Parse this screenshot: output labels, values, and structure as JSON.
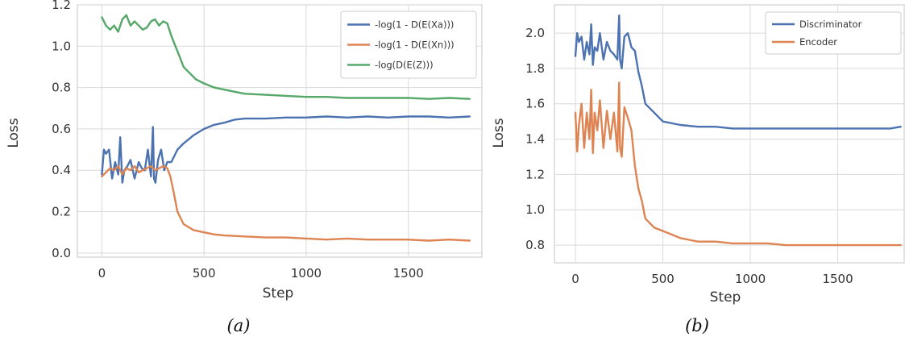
{
  "chart_data": [
    {
      "type": "line",
      "panel_label": "(a)",
      "xlabel": "Step",
      "ylabel": "Loss",
      "xlim": [
        -120,
        1860
      ],
      "ylim": [
        -0.02,
        1.2
      ],
      "xticks": [
        "0",
        "500",
        "1000",
        "1500"
      ],
      "xtick_values": [
        0,
        500,
        1000,
        1500
      ],
      "yticks": [
        "0.0",
        "0.2",
        "0.4",
        "0.6",
        "0.8",
        "1.0",
        "1.2"
      ],
      "ytick_values": [
        0.0,
        0.2,
        0.4,
        0.6,
        0.8,
        1.0,
        1.2
      ],
      "grid": true,
      "legend": "top-right",
      "series": [
        {
          "name": "-log(1 - D(E(Xa)))",
          "color": "#4c72b0",
          "x": [
            0,
            10,
            20,
            35,
            50,
            65,
            80,
            90,
            100,
            110,
            125,
            140,
            160,
            180,
            195,
            210,
            225,
            240,
            250,
            255,
            262,
            275,
            290,
            305,
            320,
            340,
            370,
            400,
            450,
            500,
            550,
            600,
            650,
            700,
            800,
            900,
            1000,
            1100,
            1200,
            1300,
            1400,
            1500,
            1600,
            1700,
            1800
          ],
          "y": [
            0.38,
            0.5,
            0.48,
            0.5,
            0.36,
            0.44,
            0.38,
            0.56,
            0.34,
            0.4,
            0.42,
            0.45,
            0.36,
            0.44,
            0.41,
            0.4,
            0.5,
            0.37,
            0.61,
            0.36,
            0.34,
            0.45,
            0.5,
            0.4,
            0.44,
            0.44,
            0.5,
            0.53,
            0.57,
            0.6,
            0.62,
            0.63,
            0.645,
            0.65,
            0.65,
            0.655,
            0.655,
            0.66,
            0.655,
            0.66,
            0.655,
            0.66,
            0.66,
            0.655,
            0.66
          ]
        },
        {
          "name": "-log(1 - D(E(Xn)))",
          "color": "#dd8452",
          "x": [
            0,
            20,
            40,
            60,
            80,
            100,
            120,
            140,
            160,
            180,
            200,
            220,
            240,
            260,
            280,
            300,
            320,
            335,
            350,
            370,
            400,
            450,
            500,
            550,
            600,
            700,
            800,
            900,
            1000,
            1100,
            1200,
            1300,
            1400,
            1500,
            1600,
            1700,
            1800
          ],
          "y": [
            0.37,
            0.39,
            0.41,
            0.4,
            0.42,
            0.38,
            0.41,
            0.4,
            0.42,
            0.39,
            0.4,
            0.41,
            0.42,
            0.4,
            0.41,
            0.42,
            0.41,
            0.37,
            0.3,
            0.2,
            0.14,
            0.11,
            0.1,
            0.09,
            0.085,
            0.08,
            0.075,
            0.075,
            0.07,
            0.065,
            0.07,
            0.065,
            0.065,
            0.065,
            0.06,
            0.065,
            0.06
          ]
        },
        {
          "name": "-log(D(E(Z)))",
          "color": "#55a868",
          "x": [
            0,
            20,
            40,
            60,
            80,
            100,
            120,
            140,
            160,
            180,
            200,
            220,
            240,
            260,
            280,
            300,
            320,
            340,
            360,
            380,
            400,
            430,
            460,
            500,
            550,
            600,
            650,
            700,
            800,
            900,
            1000,
            1100,
            1200,
            1300,
            1400,
            1500,
            1600,
            1700,
            1800
          ],
          "y": [
            1.14,
            1.1,
            1.08,
            1.1,
            1.07,
            1.13,
            1.15,
            1.1,
            1.12,
            1.1,
            1.08,
            1.09,
            1.12,
            1.13,
            1.1,
            1.12,
            1.11,
            1.05,
            1.0,
            0.95,
            0.9,
            0.87,
            0.84,
            0.82,
            0.8,
            0.79,
            0.78,
            0.77,
            0.765,
            0.76,
            0.755,
            0.755,
            0.75,
            0.75,
            0.75,
            0.75,
            0.745,
            0.75,
            0.745
          ]
        }
      ]
    },
    {
      "type": "line",
      "panel_label": "(b)",
      "xlabel": "Step",
      "ylabel": "Loss",
      "xlim": [
        -120,
        1880
      ],
      "ylim": [
        0.7,
        2.16
      ],
      "xticks": [
        "0",
        "500",
        "1000",
        "1500"
      ],
      "xtick_values": [
        0,
        500,
        1000,
        1500
      ],
      "yticks": [
        "0.8",
        "1.0",
        "1.2",
        "1.4",
        "1.6",
        "1.8",
        "2.0"
      ],
      "ytick_values": [
        0.8,
        1.0,
        1.2,
        1.4,
        1.6,
        1.8,
        2.0
      ],
      "grid": true,
      "legend": "top-right",
      "series": [
        {
          "name": "Discriminator",
          "color": "#4c72b0",
          "x": [
            0,
            10,
            20,
            35,
            50,
            65,
            80,
            90,
            100,
            110,
            125,
            140,
            160,
            180,
            200,
            220,
            240,
            250,
            255,
            265,
            280,
            300,
            320,
            340,
            360,
            380,
            400,
            450,
            500,
            600,
            700,
            800,
            900,
            1000,
            1100,
            1200,
            1300,
            1400,
            1500,
            1600,
            1700,
            1800,
            1860
          ],
          "y": [
            1.87,
            2.0,
            1.95,
            1.98,
            1.85,
            1.95,
            1.88,
            2.05,
            1.82,
            1.92,
            1.9,
            2.0,
            1.85,
            1.95,
            1.9,
            1.88,
            1.85,
            2.1,
            1.85,
            1.8,
            1.98,
            2.0,
            1.92,
            1.9,
            1.78,
            1.7,
            1.6,
            1.55,
            1.5,
            1.48,
            1.47,
            1.47,
            1.46,
            1.46,
            1.46,
            1.46,
            1.46,
            1.46,
            1.46,
            1.46,
            1.46,
            1.46,
            1.47
          ]
        },
        {
          "name": "Encoder",
          "color": "#dd8452",
          "x": [
            0,
            10,
            20,
            35,
            50,
            65,
            80,
            90,
            100,
            110,
            125,
            140,
            160,
            180,
            200,
            220,
            240,
            250,
            255,
            265,
            280,
            300,
            320,
            340,
            360,
            380,
            400,
            450,
            500,
            550,
            600,
            650,
            700,
            800,
            900,
            1000,
            1100,
            1200,
            1300,
            1350,
            1400,
            1500,
            1600,
            1700,
            1800,
            1860
          ],
          "y": [
            1.55,
            1.33,
            1.48,
            1.6,
            1.35,
            1.55,
            1.4,
            1.68,
            1.32,
            1.55,
            1.45,
            1.62,
            1.35,
            1.56,
            1.4,
            1.55,
            1.33,
            1.72,
            1.35,
            1.3,
            1.58,
            1.52,
            1.45,
            1.25,
            1.12,
            1.05,
            0.95,
            0.9,
            0.88,
            0.86,
            0.84,
            0.83,
            0.82,
            0.82,
            0.81,
            0.81,
            0.81,
            0.8,
            0.8,
            0.8,
            0.8,
            0.8,
            0.8,
            0.8,
            0.8,
            0.8
          ]
        }
      ]
    }
  ]
}
